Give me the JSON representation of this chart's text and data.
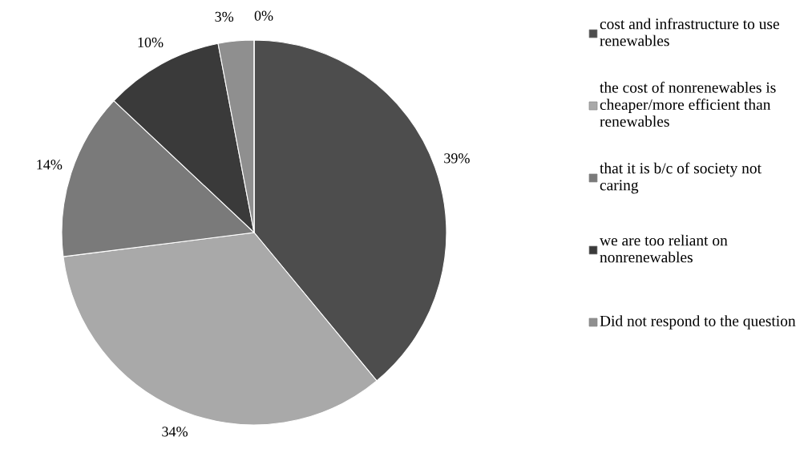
{
  "chart_data": {
    "type": "pie",
    "categories": [
      "cost and infrastructure to use renewables",
      "the cost of nonrenewables is cheaper/more efficient than renewables",
      "that it is b/c of society not caring",
      "we are too reliant on nonrenewables",
      "Did not respond to the question",
      null
    ],
    "values": [
      39,
      34,
      14,
      10,
      3,
      0
    ],
    "colors": [
      "#4d4d4d",
      "#a9a9a9",
      "#7a7a7a",
      "#3a3a3a",
      "#8f8f8f",
      "#6a6a6a"
    ],
    "value_labels": [
      "39%",
      "34%",
      "14%",
      "10%",
      "3%",
      "0%"
    ],
    "legend": "right"
  }
}
